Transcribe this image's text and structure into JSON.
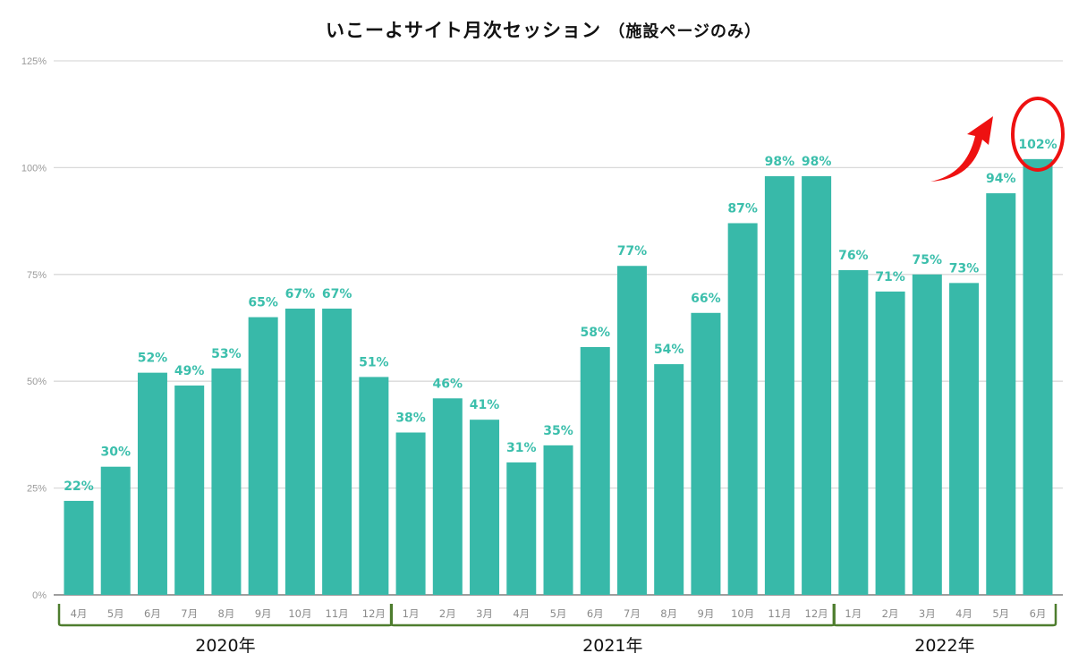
{
  "chart_data": {
    "type": "bar",
    "title": "いこーよサイト月次セッション",
    "subtitle": "（施設ページのみ）",
    "xlabel": "",
    "ylabel": "",
    "ylim": [
      0,
      125
    ],
    "yticks": [
      "0%",
      "25%",
      "50%",
      "75%",
      "100%",
      "125%"
    ],
    "grid": true,
    "categories": [
      "4月",
      "5月",
      "6月",
      "7月",
      "8月",
      "9月",
      "10月",
      "11月",
      "12月",
      "1月",
      "2月",
      "3月",
      "4月",
      "5月",
      "6月",
      "7月",
      "8月",
      "9月",
      "10月",
      "11月",
      "12月",
      "1月",
      "2月",
      "3月",
      "4月",
      "5月",
      "6月"
    ],
    "values": [
      22,
      30,
      52,
      49,
      53,
      65,
      67,
      67,
      51,
      38,
      46,
      41,
      31,
      35,
      58,
      77,
      54,
      66,
      87,
      98,
      98,
      76,
      71,
      75,
      73,
      94,
      102
    ],
    "data_labels": [
      "22%",
      "30%",
      "52%",
      "49%",
      "53%",
      "65%",
      "67%",
      "67%",
      "51%",
      "38%",
      "46%",
      "41%",
      "31%",
      "35%",
      "58%",
      "77%",
      "54%",
      "66%",
      "87%",
      "98%",
      "98%",
      "76%",
      "71%",
      "75%",
      "73%",
      "94%",
      "102%"
    ],
    "groups": [
      {
        "label": "2020年",
        "start": 0,
        "end": 8
      },
      {
        "label": "2021年",
        "start": 9,
        "end": 20
      },
      {
        "label": "2022年",
        "start": 21,
        "end": 26
      }
    ],
    "annotation": {
      "type": "red circle and upward arrow",
      "target_index": 26
    },
    "colors": {
      "bar": "#38b9a9",
      "label": "#3cbfac",
      "bracket": "#4e7d2e",
      "annotation": "#ee1111"
    }
  }
}
